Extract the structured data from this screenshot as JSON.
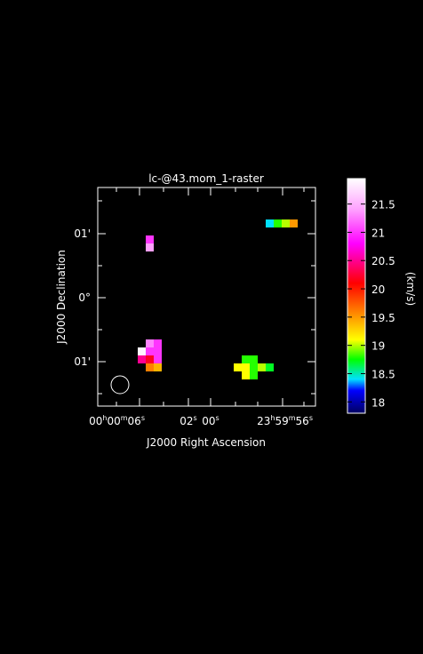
{
  "chart_data": {
    "type": "raster",
    "title": "lc-@43.mom_1-raster",
    "xlabel": "J2000 Right Ascension",
    "ylabel": "J2000 Declination",
    "colorbar_label": "(km/s)",
    "xtick_labels": [
      [
        "00",
        "h",
        "00",
        "m",
        "06",
        "s"
      ],
      [
        "02",
        "s"
      ],
      [
        "00",
        "s"
      ],
      [
        "23",
        "h",
        "59",
        "m",
        "56",
        "s"
      ]
    ],
    "ytick_labels": [
      "01'",
      "0°",
      "01'"
    ],
    "clim": [
      17.8,
      21.95
    ],
    "cticks": [
      18,
      18.5,
      19,
      19.5,
      20,
      20.5,
      21,
      21.5
    ],
    "colormap": [
      [
        17.8,
        "#000060"
      ],
      [
        18.2,
        "#0000ff"
      ],
      [
        18.4,
        "#00e0ff"
      ],
      [
        18.75,
        "#00ff00"
      ],
      [
        19.1,
        "#ffff00"
      ],
      [
        19.6,
        "#ff8000"
      ],
      [
        20.1,
        "#ff0000"
      ],
      [
        20.8,
        "#ff00ff"
      ],
      [
        21.4,
        "#ffa0ff"
      ],
      [
        21.95,
        "#ffffff"
      ]
    ],
    "pixels": [
      {
        "col": 6,
        "row": 6,
        "value": 21.0
      },
      {
        "col": 6,
        "row": 7,
        "value": 21.4
      },
      {
        "col": 21,
        "row": 4,
        "value": 18.4
      },
      {
        "col": 22,
        "row": 4,
        "value": 18.8
      },
      {
        "col": 23,
        "row": 4,
        "value": 19.0
      },
      {
        "col": 24,
        "row": 4,
        "value": 19.5
      },
      {
        "col": 6,
        "row": 19,
        "value": 21.3
      },
      {
        "col": 7,
        "row": 19,
        "value": 21.0
      },
      {
        "col": 5,
        "row": 20,
        "value": 21.9
      },
      {
        "col": 6,
        "row": 20,
        "value": 21.0
      },
      {
        "col": 7,
        "row": 20,
        "value": 21.0
      },
      {
        "col": 5,
        "row": 21,
        "value": 20.5
      },
      {
        "col": 6,
        "row": 21,
        "value": 20.2
      },
      {
        "col": 7,
        "row": 21,
        "value": 21.0
      },
      {
        "col": 6,
        "row": 22,
        "value": 19.6
      },
      {
        "col": 7,
        "row": 22,
        "value": 19.4
      },
      {
        "col": 18,
        "row": 21,
        "value": 18.8
      },
      {
        "col": 19,
        "row": 21,
        "value": 18.8
      },
      {
        "col": 17,
        "row": 22,
        "value": 19.1
      },
      {
        "col": 18,
        "row": 22,
        "value": 19.1
      },
      {
        "col": 19,
        "row": 22,
        "value": 18.8
      },
      {
        "col": 20,
        "row": 22,
        "value": 19.0
      },
      {
        "col": 21,
        "row": 22,
        "value": 18.7
      },
      {
        "col": 18,
        "row": 23,
        "value": 19.1
      },
      {
        "col": 19,
        "row": 23,
        "value": 18.8
      }
    ]
  }
}
